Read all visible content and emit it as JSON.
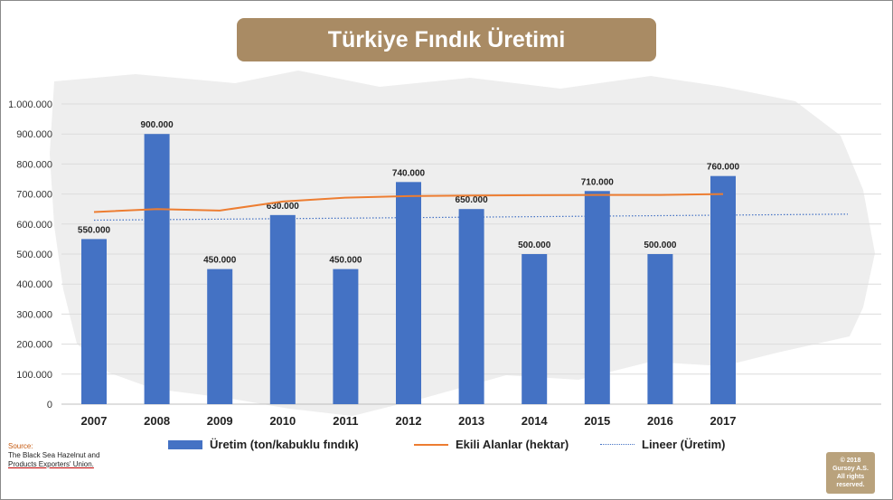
{
  "title": "Türkiye Fındık Üretimi",
  "chart_data": {
    "type": "bar",
    "title": "Türkiye Fındık Üretimi",
    "categories": [
      "2007",
      "2008",
      "2009",
      "2010",
      "2011",
      "2012",
      "2013",
      "2014",
      "2015",
      "2016",
      "2017"
    ],
    "series": [
      {
        "name": "Üretim (ton/kabuklu fındık)",
        "type": "bar",
        "values": [
          550000,
          900000,
          450000,
          630000,
          450000,
          740000,
          650000,
          500000,
          710000,
          500000,
          760000
        ],
        "labels": [
          "550.000",
          "900.000",
          "450.000",
          "630.000",
          "450.000",
          "740.000",
          "650.000",
          "500.000",
          "710.000",
          "500.000",
          "760.000"
        ]
      },
      {
        "name": "Ekili Alanlar (hektar)",
        "type": "line",
        "values": [
          640000,
          650000,
          645000,
          675000,
          688000,
          693000,
          695000,
          696000,
          697000,
          697000,
          700000
        ]
      },
      {
        "name": "Lineer (Üretim)",
        "type": "trendline",
        "start": 613000,
        "end": 633000
      }
    ],
    "y_ticks": [
      "0",
      "100.000",
      "200.000",
      "300.000",
      "400.000",
      "500.000",
      "600.000",
      "700.000",
      "800.000",
      "900.000",
      "1.000.000"
    ],
    "ylim": [
      0,
      1000000
    ],
    "grid": true,
    "legend_position": "bottom",
    "colors": {
      "bar": "#4472c4",
      "line": "#ed7d31",
      "trend": "#4472c4",
      "title_bg": "#a98b64"
    }
  },
  "legend": {
    "bar_label": "Üretim (ton/kabuklu fındık)",
    "line_label": "Ekili Alanlar (hektar)",
    "trend_label": "Lineer (Üretim)"
  },
  "source": {
    "label": "Source:",
    "line1": "The Black Sea Hazelnut and",
    "line2": "Products Exporters' Union."
  },
  "copyright": {
    "line1": "© 2018",
    "line2": "Gursoy A.S.",
    "line3": "All rights",
    "line4": "reserved."
  }
}
